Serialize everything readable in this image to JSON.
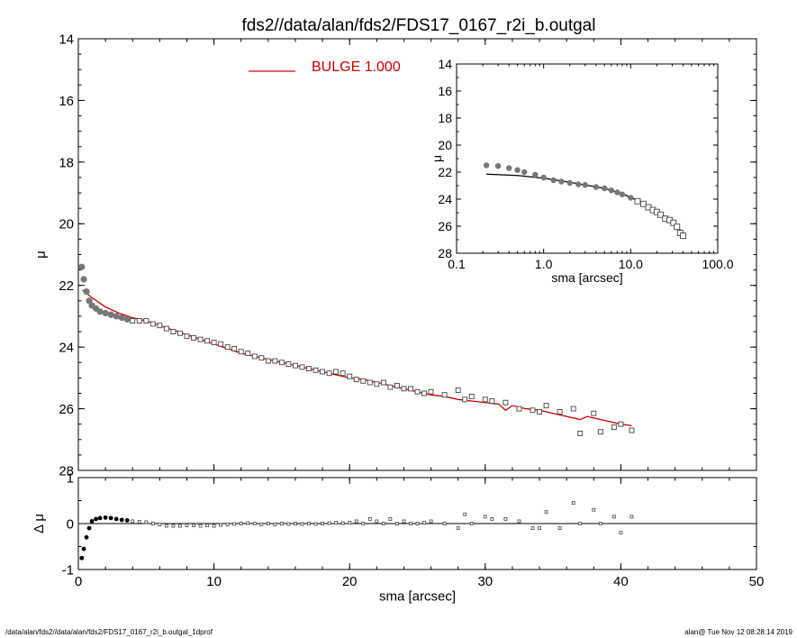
{
  "title": "fds2//data/alan/fds2/FDS17_0167_r2i_b.outgal",
  "footer_left": "/data/alan/fds2//data/alan/fds2/FDS17_0167_r2i_b.outgal_1dprof",
  "footer_right": "alan@  Tue Nov 12 08:28:14 2019",
  "colors": {
    "model": "#cc0000",
    "data": "#444444",
    "axis": "#000000"
  },
  "chart_data": [
    {
      "type": "scatter",
      "panel": "main",
      "xlabel": "sma [arcsec]",
      "ylabel": "μ",
      "xlim": [
        0,
        50
      ],
      "ylim": [
        28,
        14
      ],
      "y_inverted": true,
      "xticks": [
        "0",
        "10",
        "20",
        "30",
        "40",
        "50"
      ],
      "yticks": [
        "14",
        "16",
        "18",
        "20",
        "22",
        "24",
        "26",
        "28"
      ],
      "legend": {
        "label": "BULGE  1.000",
        "placement": "top"
      },
      "series": [
        {
          "name": "BULGE  1.000",
          "role": "model",
          "x": [
            0.3,
            1,
            2,
            3,
            4,
            5,
            6,
            7,
            8,
            9,
            10,
            11,
            12,
            13,
            14,
            15,
            16,
            17,
            18,
            19,
            20,
            21,
            22,
            23,
            24,
            25,
            26,
            27,
            28,
            29,
            30,
            31,
            31.5,
            32,
            33,
            34,
            35,
            36,
            37,
            37.5,
            38,
            39,
            40,
            40.8
          ],
          "y": [
            22.15,
            22.4,
            22.7,
            22.9,
            23.05,
            23.15,
            23.3,
            23.45,
            23.6,
            23.75,
            23.9,
            24.05,
            24.2,
            24.3,
            24.4,
            24.5,
            24.6,
            24.7,
            24.8,
            24.9,
            25.0,
            25.05,
            25.15,
            25.25,
            25.35,
            25.45,
            25.55,
            25.6,
            25.7,
            25.75,
            25.8,
            25.85,
            26.05,
            25.9,
            26.0,
            26.05,
            26.15,
            26.25,
            26.35,
            26.25,
            26.3,
            26.4,
            26.5,
            26.55
          ]
        },
        {
          "name": "",
          "role": "data",
          "x": [
            0.25,
            0.4,
            0.6,
            0.8,
            1.0,
            1.3,
            1.6,
            2.0,
            2.4,
            2.8,
            3.2,
            3.6,
            4.0,
            4.5,
            5.0,
            5.5,
            6.0,
            6.5,
            7.0,
            7.5,
            8.0,
            8.5,
            9.0,
            9.5,
            10.0,
            10.5,
            11.0,
            11.5,
            12.0,
            12.5,
            13.0,
            13.5,
            14.0,
            14.5,
            15.0,
            15.5,
            16.0,
            16.5,
            17.0,
            17.5,
            18.0,
            18.5,
            19.0,
            19.5,
            20.0,
            20.5,
            21.0,
            21.5,
            22.0,
            22.5,
            23.0,
            23.5,
            24.0,
            24.5,
            25.0,
            25.5,
            26.0,
            27.0,
            28.0,
            28.5,
            29.0,
            30.0,
            30.5,
            31.5,
            32.5,
            33.5,
            34.0,
            34.5,
            35.5,
            36.5,
            37.0,
            38.0,
            38.5,
            39.5,
            40.0,
            40.8
          ],
          "y": [
            21.4,
            21.8,
            22.2,
            22.5,
            22.65,
            22.75,
            22.85,
            22.9,
            22.95,
            23.0,
            23.05,
            23.1,
            23.15,
            23.15,
            23.15,
            23.25,
            23.3,
            23.4,
            23.5,
            23.55,
            23.65,
            23.7,
            23.75,
            23.8,
            23.85,
            23.9,
            24.0,
            24.05,
            24.15,
            24.2,
            24.3,
            24.35,
            24.45,
            24.45,
            24.5,
            24.55,
            24.6,
            24.65,
            24.7,
            24.75,
            24.8,
            24.85,
            24.8,
            24.85,
            24.95,
            25.05,
            25.1,
            25.15,
            25.2,
            25.15,
            25.3,
            25.25,
            25.35,
            25.35,
            25.45,
            25.5,
            25.45,
            25.55,
            25.4,
            25.7,
            25.6,
            25.7,
            25.75,
            25.8,
            26.0,
            26.05,
            26.1,
            25.9,
            26.1,
            26.0,
            26.8,
            26.15,
            26.75,
            26.6,
            26.5,
            26.7
          ]
        }
      ]
    },
    {
      "type": "scatter",
      "panel": "residual",
      "xlabel": "sma [arcsec]",
      "ylabel": "Δ μ",
      "xlim": [
        0,
        50
      ],
      "ylim": [
        -1,
        1
      ],
      "xticks": [
        "0",
        "10",
        "20",
        "30",
        "40",
        "50"
      ],
      "yticks": [
        "-1",
        "0",
        "1"
      ],
      "zero_line": true,
      "series": [
        {
          "name": "",
          "role": "residual",
          "x": [
            0.25,
            0.4,
            0.6,
            0.8,
            1.0,
            1.3,
            1.6,
            2.0,
            2.4,
            2.8,
            3.2,
            3.6,
            4.0,
            4.5,
            5.0,
            5.5,
            6.0,
            6.5,
            7.0,
            7.5,
            8.0,
            8.5,
            9.0,
            9.5,
            10.0,
            10.5,
            11.0,
            11.5,
            12.0,
            12.5,
            13.0,
            13.5,
            14.0,
            14.5,
            15.0,
            15.5,
            16.0,
            16.5,
            17.0,
            17.5,
            18.0,
            18.5,
            19.0,
            19.5,
            20.0,
            20.5,
            21.0,
            21.5,
            22.0,
            22.5,
            23.0,
            23.5,
            24.0,
            24.5,
            25.0,
            25.5,
            26.0,
            27.0,
            28.0,
            28.5,
            29.0,
            30.0,
            30.5,
            31.5,
            32.5,
            33.5,
            34.0,
            34.5,
            35.5,
            36.5,
            37.0,
            38.0,
            38.5,
            39.5,
            40.0,
            40.8
          ],
          "y": [
            -0.75,
            -0.55,
            -0.3,
            -0.1,
            0.05,
            0.1,
            0.12,
            0.13,
            0.12,
            0.1,
            0.08,
            0.07,
            0.05,
            0.04,
            0.03,
            0.0,
            -0.02,
            -0.05,
            -0.05,
            -0.05,
            -0.04,
            -0.04,
            -0.05,
            -0.04,
            -0.05,
            -0.03,
            -0.02,
            -0.01,
            0.0,
            0.01,
            0.0,
            -0.02,
            0.0,
            -0.02,
            0.0,
            -0.01,
            0.0,
            -0.01,
            0.0,
            -0.01,
            0.0,
            0.01,
            0.02,
            0.01,
            0.02,
            0.05,
            0.0,
            0.1,
            0.05,
            0.0,
            0.1,
            0.0,
            0.05,
            0.0,
            0.0,
            0.02,
            0.05,
            0.0,
            -0.1,
            0.2,
            0.0,
            0.15,
            0.1,
            0.1,
            0.05,
            -0.1,
            -0.1,
            0.25,
            -0.1,
            0.45,
            0.0,
            0.3,
            0.0,
            0.15,
            -0.2,
            0.15
          ]
        }
      ]
    },
    {
      "type": "scatter",
      "panel": "inset",
      "xlabel": "sma [arcsec]",
      "ylabel": "μ",
      "xscale": "log",
      "xlim": [
        0.1,
        100
      ],
      "ylim": [
        28,
        14
      ],
      "y_inverted": true,
      "xticks": [
        "0.1",
        "1.0",
        "10.0",
        "100.0"
      ],
      "yticks": [
        "14",
        "16",
        "18",
        "20",
        "22",
        "24",
        "26",
        "28"
      ],
      "series": [
        {
          "name": "",
          "role": "model",
          "x": [
            0.22,
            0.5,
            1.0,
            2.0,
            3.0,
            5.0,
            8.0,
            12.0,
            18.0,
            25.0,
            32.0,
            40.0
          ],
          "y": [
            22.15,
            22.25,
            22.45,
            22.75,
            22.95,
            23.2,
            23.6,
            24.1,
            24.7,
            25.3,
            25.85,
            26.5
          ]
        },
        {
          "name": "",
          "role": "data",
          "x": [
            0.22,
            0.3,
            0.4,
            0.5,
            0.6,
            0.8,
            1.0,
            1.3,
            1.6,
            2.0,
            2.5,
            3.0,
            4.0,
            5.0,
            6.0,
            7.0,
            8.0,
            10.0,
            12.0,
            14.0,
            16.0,
            18.0,
            20.0,
            22.0,
            25.0,
            28.0,
            31.0,
            34.0,
            37.0,
            40.0
          ],
          "y": [
            21.5,
            21.55,
            21.7,
            21.85,
            22.0,
            22.2,
            22.4,
            22.6,
            22.7,
            22.8,
            22.9,
            22.95,
            23.1,
            23.2,
            23.35,
            23.5,
            23.65,
            23.9,
            24.15,
            24.35,
            24.6,
            24.8,
            24.95,
            25.15,
            25.45,
            25.55,
            25.75,
            26.05,
            26.5,
            26.7
          ]
        }
      ]
    }
  ]
}
